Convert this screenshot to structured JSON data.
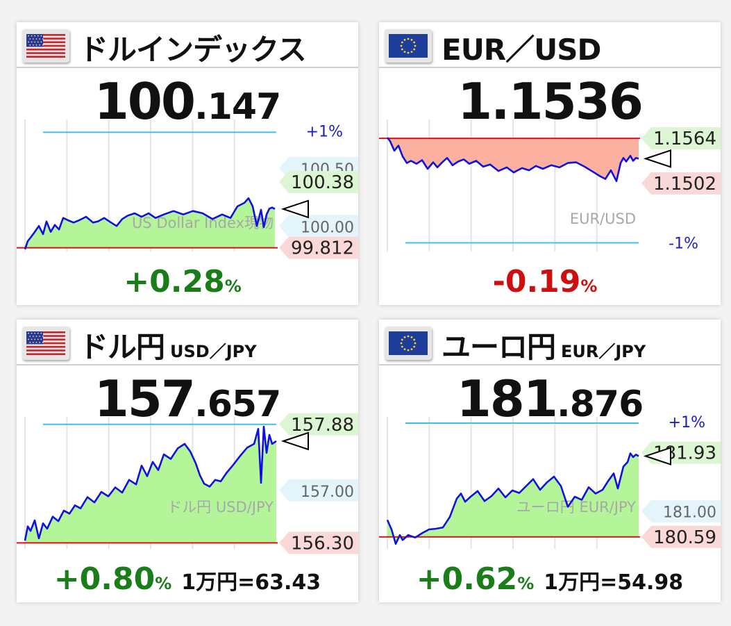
{
  "colors": {
    "up": "#1a7d1a",
    "down": "#cc1010",
    "fill_up": "#b5f59a",
    "fill_down": "#fbb0a0",
    "line": "#1010e0",
    "pct_line": "#3cc0f0",
    "base_line": "#dd1111",
    "grid": "#e4e4e4",
    "tag_green": "#dcf5d2",
    "tag_red": "#fbd8d8",
    "tag_blue": "#e4f4fb"
  },
  "panels": [
    {
      "id": "dxy",
      "flag": "us-flag-icon",
      "title": "ドルインデックス",
      "subtitle": "",
      "price_int": "100",
      "price_dec": ".147",
      "change_value": "+0.28",
      "change_unit": "%",
      "change_dir": "up",
      "extra": "",
      "watermark": "US Dollar Index現物",
      "plus_label": "+1%",
      "minus_label": "",
      "tags": [
        {
          "text": "100.50",
          "style": "blue",
          "cut": true,
          "v": 100.5
        },
        {
          "text": "100.38",
          "style": "green",
          "v": 100.38
        },
        {
          "text": "100.00",
          "style": "blue",
          "v": 100.0
        },
        {
          "text": "99.812",
          "style": "red",
          "v": 99.812
        }
      ],
      "chart_data": {
        "type": "line",
        "fill_style": "up",
        "ylim": [
          99.78,
          100.92
        ],
        "base": 99.812,
        "plus_level": 100.81,
        "minus_level": null,
        "current": 100.147,
        "high": 100.38,
        "low": 99.812,
        "x": [
          0,
          4,
          8,
          13,
          20,
          26,
          31,
          37,
          43,
          49,
          55,
          62,
          70,
          78,
          88,
          98,
          105,
          114,
          124,
          132,
          140,
          148,
          158,
          168,
          178,
          188,
          200,
          214,
          228,
          242,
          256,
          270,
          284,
          296,
          306,
          316,
          322,
          328,
          334,
          340,
          344,
          348,
          352,
          356,
          360
        ],
        "y": [
          99.8,
          99.87,
          99.9,
          99.94,
          100.0,
          99.93,
          100.04,
          99.95,
          100.01,
          99.97,
          100.07,
          100.05,
          100.03,
          100.05,
          100.08,
          100.03,
          100.04,
          100.07,
          100.03,
          100.0,
          100.06,
          100.09,
          100.11,
          100.08,
          100.11,
          100.07,
          100.1,
          100.13,
          100.1,
          100.13,
          100.11,
          100.06,
          100.1,
          100.07,
          100.17,
          100.2,
          100.24,
          100.17,
          100.0,
          100.14,
          99.99,
          100.1,
          100.15,
          100.16,
          100.147
        ]
      }
    },
    {
      "id": "eurusd",
      "flag": "eu-flag-icon",
      "title": "EUR／USD",
      "subtitle": "",
      "price_int": "1.1536",
      "price_dec": "",
      "change_value": "-0.19",
      "change_unit": "%",
      "change_dir": "down",
      "extra": "",
      "watermark": "EUR/USD",
      "plus_label": "",
      "minus_label": "-1%",
      "tags": [
        {
          "text": "1.1564",
          "style": "green",
          "v": 1.1564
        },
        {
          "text": "1.1502",
          "style": "red",
          "v": 1.1502
        }
      ],
      "chart_data": {
        "type": "line",
        "fill_style": "down",
        "ylim": [
          1.1408,
          1.159
        ],
        "base": 1.1564,
        "plus_level": null,
        "minus_level": 1.142,
        "current": 1.1536,
        "high": 1.1564,
        "low": 1.1502,
        "x": [
          0,
          4,
          10,
          16,
          22,
          28,
          34,
          42,
          50,
          58,
          66,
          72,
          78,
          86,
          94,
          102,
          110,
          118,
          128,
          138,
          148,
          160,
          172,
          182,
          194,
          204,
          214,
          224,
          236,
          248,
          260,
          272,
          284,
          296,
          306,
          314,
          322,
          330,
          336,
          340,
          344,
          350,
          354,
          358,
          362
        ],
        "y": [
          1.1565,
          1.156,
          1.1547,
          1.1554,
          1.1539,
          1.153,
          1.1533,
          1.1529,
          1.1534,
          1.1522,
          1.1531,
          1.1524,
          1.153,
          1.1537,
          1.1527,
          1.1532,
          1.1535,
          1.1529,
          1.1533,
          1.1525,
          1.1528,
          1.1519,
          1.1524,
          1.1517,
          1.1523,
          1.152,
          1.1526,
          1.1522,
          1.1527,
          1.1524,
          1.153,
          1.1531,
          1.1525,
          1.1518,
          1.1512,
          1.1508,
          1.152,
          1.1505,
          1.153,
          1.1537,
          1.1532,
          1.154,
          1.1533,
          1.1537,
          1.1536
        ]
      }
    },
    {
      "id": "usdjpy",
      "flag": "us-flag-icon",
      "title": "ドル円",
      "subtitle": "USD／JPY",
      "price_int": "157",
      "price_dec": ".657",
      "change_value": "+0.80",
      "change_unit": "%",
      "change_dir": "up",
      "extra": "1万円=63.43",
      "watermark": "ドル円 USD/JPY",
      "plus_label": "+1%",
      "minus_label": "",
      "tags": [
        {
          "text": "157.88",
          "style": "green",
          "v": 157.88
        },
        {
          "text": "157.00",
          "style": "blue",
          "v": 157.0
        },
        {
          "text": "156.30",
          "style": "red",
          "v": 156.3
        }
      ],
      "chart_data": {
        "type": "line",
        "fill_style": "up",
        "ylim": [
          156.22,
          157.98
        ],
        "base": 156.3,
        "plus_level": 157.88,
        "minus_level": null,
        "current": 157.657,
        "high": 157.88,
        "low": 156.3,
        "x": [
          0,
          4,
          8,
          14,
          20,
          26,
          32,
          40,
          48,
          56,
          64,
          72,
          80,
          90,
          100,
          110,
          120,
          130,
          140,
          150,
          160,
          168,
          176,
          184,
          192,
          200,
          210,
          220,
          230,
          238,
          246,
          252,
          258,
          266,
          274,
          282,
          290,
          300,
          310,
          320,
          330,
          336,
          340,
          344,
          348,
          352,
          356,
          362
        ],
        "y": [
          156.33,
          156.52,
          156.46,
          156.6,
          156.36,
          156.56,
          156.49,
          156.65,
          156.59,
          156.73,
          156.69,
          156.8,
          156.76,
          156.91,
          156.84,
          156.98,
          156.92,
          157.04,
          156.97,
          157.14,
          157.08,
          157.33,
          157.19,
          157.38,
          157.27,
          157.48,
          157.42,
          157.56,
          157.62,
          157.52,
          157.36,
          157.2,
          157.09,
          157.05,
          157.14,
          157.12,
          157.23,
          157.34,
          157.46,
          157.57,
          157.62,
          157.82,
          157.1,
          157.85,
          157.5,
          157.74,
          157.62,
          157.657
        ]
      }
    },
    {
      "id": "eurjpy",
      "flag": "eu-flag-icon",
      "title": "ユーロ円",
      "subtitle": "EUR／JPY",
      "price_int": "181",
      "price_dec": ".876",
      "change_value": "+0.62",
      "change_unit": "%",
      "change_dir": "up",
      "extra": "1万円=54.98",
      "watermark": "ユーロ円 EUR/JPY",
      "plus_label": "+1%",
      "minus_label": "",
      "tags": [
        {
          "text": "181.93",
          "style": "green",
          "v": 181.93
        },
        {
          "text": "181.00",
          "style": "blue",
          "v": 181.0
        },
        {
          "text": "180.59",
          "style": "red",
          "v": 180.59
        }
      ],
      "chart_data": {
        "type": "line",
        "fill_style": "up",
        "ylim": [
          180.4,
          182.5
        ],
        "base": 180.59,
        "plus_level": 182.4,
        "minus_level": null,
        "current": 181.876,
        "high": 181.93,
        "low": 180.59,
        "x": [
          0,
          6,
          12,
          18,
          22,
          30,
          40,
          50,
          60,
          70,
          80,
          90,
          100,
          106,
          112,
          120,
          130,
          140,
          150,
          160,
          170,
          180,
          190,
          200,
          210,
          220,
          230,
          240,
          250,
          260,
          270,
          280,
          290,
          300,
          310,
          318,
          326,
          332,
          340,
          346,
          350,
          354,
          358,
          362
        ],
        "y": [
          180.86,
          180.71,
          180.48,
          180.62,
          180.54,
          180.62,
          180.58,
          180.65,
          180.71,
          180.72,
          180.74,
          180.91,
          181.2,
          181.28,
          181.15,
          181.23,
          181.32,
          181.16,
          181.24,
          181.36,
          181.22,
          181.33,
          181.29,
          181.4,
          181.51,
          181.34,
          181.46,
          181.55,
          181.4,
          181.07,
          181.23,
          181.18,
          181.38,
          181.28,
          181.34,
          181.48,
          181.6,
          181.36,
          181.71,
          181.78,
          181.92,
          181.86,
          181.9,
          181.876
        ]
      }
    }
  ]
}
